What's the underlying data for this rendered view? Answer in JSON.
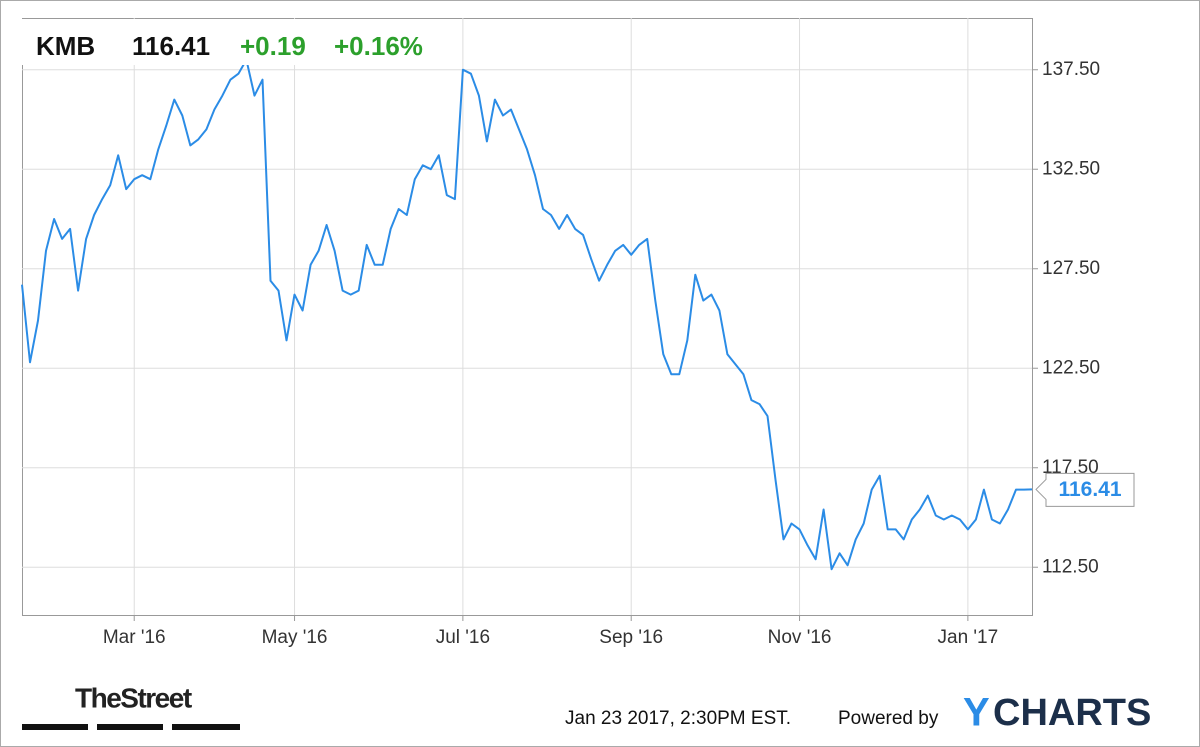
{
  "chart_data": {
    "type": "line",
    "ticker": "KMB",
    "change": "+0.19",
    "change_percent": "+0.16%",
    "timestamp": "Jan 23 2017, 2:30PM EST.",
    "powered_by": "Powered by",
    "brand_initial": "Y",
    "brand_rest": "CHARTS",
    "source_logo": "TheStreet",
    "color": "#2b8ce6",
    "change_color": "#2ca02c",
    "grid": true,
    "ylim": [
      110.1,
      140.1
    ],
    "yticks": [
      {
        "value": 112.5,
        "label": "112.50"
      },
      {
        "value": 117.5,
        "label": "117.50"
      },
      {
        "value": 122.5,
        "label": "122.50"
      },
      {
        "value": 127.5,
        "label": "127.50"
      },
      {
        "value": 132.5,
        "label": "132.50"
      },
      {
        "value": 137.5,
        "label": "137.50"
      }
    ],
    "categories": [
      null,
      null,
      null,
      null,
      null,
      null,
      null,
      null,
      null,
      null,
      null,
      null,
      null,
      null,
      "Mar '16",
      null,
      null,
      null,
      null,
      null,
      null,
      null,
      null,
      null,
      null,
      null,
      null,
      null,
      null,
      null,
      null,
      null,
      null,
      null,
      "May '16",
      null,
      null,
      null,
      null,
      null,
      null,
      null,
      null,
      null,
      null,
      null,
      null,
      null,
      null,
      null,
      null,
      null,
      null,
      null,
      null,
      "Jul '16",
      null,
      null,
      null,
      null,
      null,
      null,
      null,
      null,
      null,
      null,
      null,
      null,
      null,
      null,
      null,
      null,
      null,
      null,
      null,
      null,
      "Sep '16",
      null,
      null,
      null,
      null,
      null,
      null,
      null,
      null,
      null,
      null,
      null,
      null,
      null,
      null,
      null,
      null,
      null,
      null,
      null,
      null,
      "Nov '16",
      null,
      null,
      null,
      null,
      null,
      null,
      null,
      null,
      null,
      null,
      null,
      null,
      null,
      null,
      null,
      null,
      null,
      null,
      null,
      null,
      "Jan '17",
      null,
      null,
      null,
      null,
      null,
      null,
      null,
      null
    ],
    "values": [
      126.7,
      122.8,
      124.9,
      128.4,
      130.0,
      129.0,
      129.5,
      126.4,
      129.0,
      130.2,
      131.0,
      131.7,
      133.2,
      131.5,
      132.0,
      132.2,
      132.0,
      133.5,
      134.7,
      136.0,
      135.2,
      133.7,
      134.0,
      134.5,
      135.5,
      136.2,
      137.0,
      137.3,
      138.0,
      136.2,
      137.0,
      126.9,
      126.4,
      123.9,
      126.2,
      125.4,
      127.7,
      128.4,
      129.7,
      128.4,
      126.4,
      126.2,
      126.4,
      128.7,
      127.7,
      127.7,
      129.5,
      130.5,
      130.2,
      132.0,
      132.7,
      132.5,
      133.2,
      131.2,
      131.0,
      137.5,
      137.3,
      136.2,
      133.9,
      136.0,
      135.2,
      135.5,
      134.5,
      133.5,
      132.2,
      130.5,
      130.2,
      129.5,
      130.2,
      129.5,
      129.2,
      128.0,
      126.9,
      127.7,
      128.4,
      128.7,
      128.2,
      128.7,
      129.0,
      125.9,
      123.2,
      122.2,
      122.2,
      123.9,
      127.2,
      125.9,
      126.2,
      125.4,
      123.2,
      122.7,
      122.2,
      120.9,
      120.7,
      120.1,
      116.9,
      113.9,
      114.7,
      114.4,
      113.6,
      112.9,
      115.4,
      112.4,
      113.2,
      112.6,
      113.9,
      114.7,
      116.4,
      117.1,
      114.4,
      114.4,
      113.9,
      114.9,
      115.4,
      116.1,
      115.1,
      114.9,
      115.1,
      114.9,
      114.4,
      114.9,
      116.4,
      114.9,
      114.7,
      115.4,
      116.4,
      116.4,
      116.41
    ]
  }
}
